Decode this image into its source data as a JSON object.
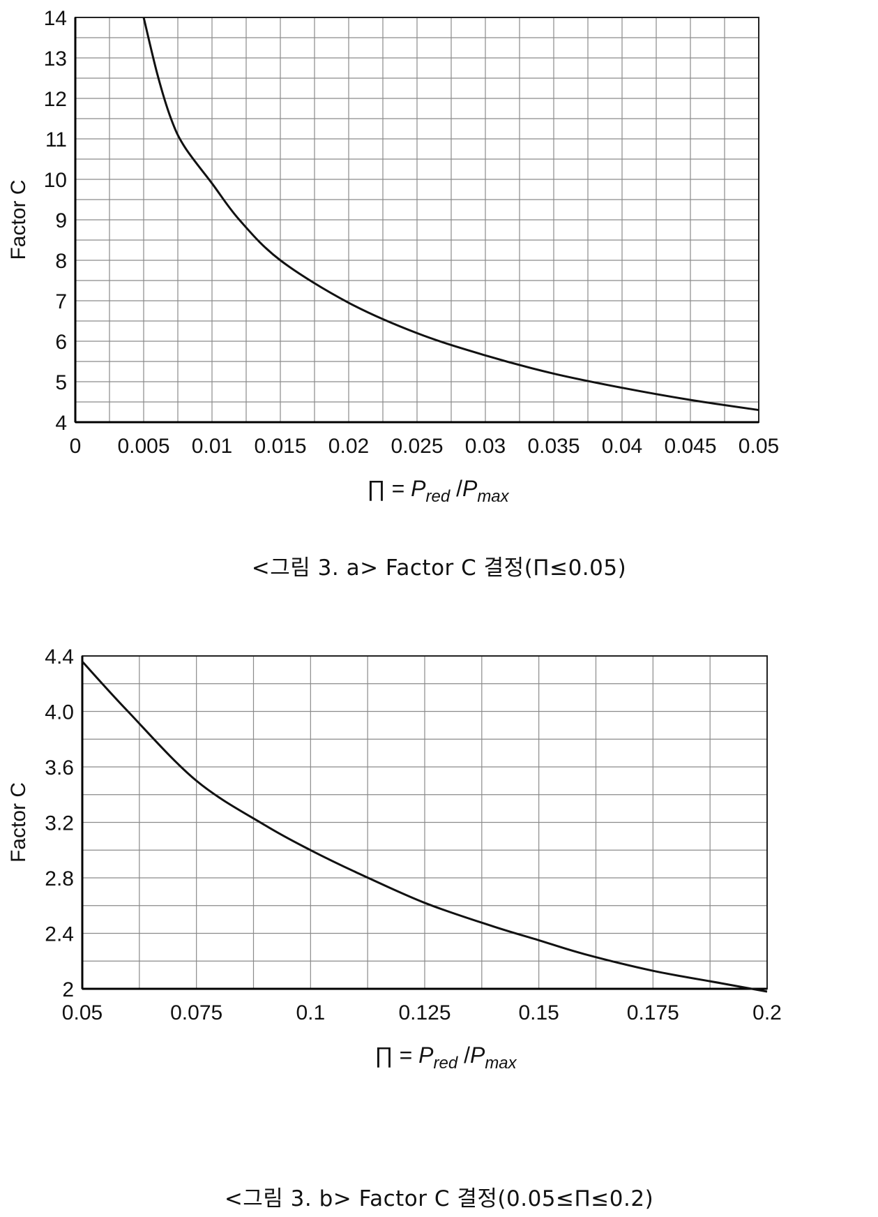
{
  "chart_data": [
    {
      "type": "line",
      "ylabel": "Factor C",
      "xlabel": "∏ = P_red / P_max",
      "xlim": [
        0,
        0.05
      ],
      "ylim": [
        4,
        14
      ],
      "x_ticks": [
        "0",
        "0.005",
        "0.01",
        "0.015",
        "0.02",
        "0.025",
        "0.03",
        "0.035",
        "0.04",
        "0.045",
        "0.05"
      ],
      "y_ticks": [
        "4",
        "5",
        "6",
        "7",
        "8",
        "9",
        "10",
        "11",
        "12",
        "13",
        "14"
      ],
      "grid": true,
      "series": [
        {
          "x": [
            0.005,
            0.006,
            0.007,
            0.008,
            0.01,
            0.012,
            0.015,
            0.02,
            0.025,
            0.03,
            0.035,
            0.04,
            0.045,
            0.05
          ],
          "y": [
            14.0,
            12.6,
            11.5,
            10.8,
            9.9,
            9.0,
            8.0,
            6.95,
            6.2,
            5.65,
            5.2,
            4.85,
            4.55,
            4.3
          ]
        }
      ],
      "caption": "<그림 3. a> Factor C 결정(Π≤0.05)"
    },
    {
      "type": "line",
      "ylabel": "Factor C",
      "xlabel": "∏ = P_red / P_max",
      "xlim": [
        0.05,
        0.2
      ],
      "ylim": [
        2,
        4.4
      ],
      "x_ticks": [
        "0.05",
        "0.075",
        "0.1",
        "0.125",
        "0.15",
        "0.175",
        "0.2"
      ],
      "y_ticks": [
        "2",
        "2.4",
        "2.8",
        "3.2",
        "3.6",
        "4.0",
        "4.4"
      ],
      "grid": true,
      "series": [
        {
          "x": [
            0.05,
            0.06,
            0.075,
            0.09,
            0.1,
            0.11,
            0.125,
            0.14,
            0.15,
            0.16,
            0.175,
            0.19,
            0.2
          ],
          "y": [
            4.36,
            4.0,
            3.5,
            3.18,
            3.0,
            2.84,
            2.62,
            2.45,
            2.35,
            2.25,
            2.13,
            2.04,
            1.98
          ]
        }
      ],
      "caption": "<그림 3. b> Factor C 결정(0.05≤Π≤0.2)"
    }
  ]
}
